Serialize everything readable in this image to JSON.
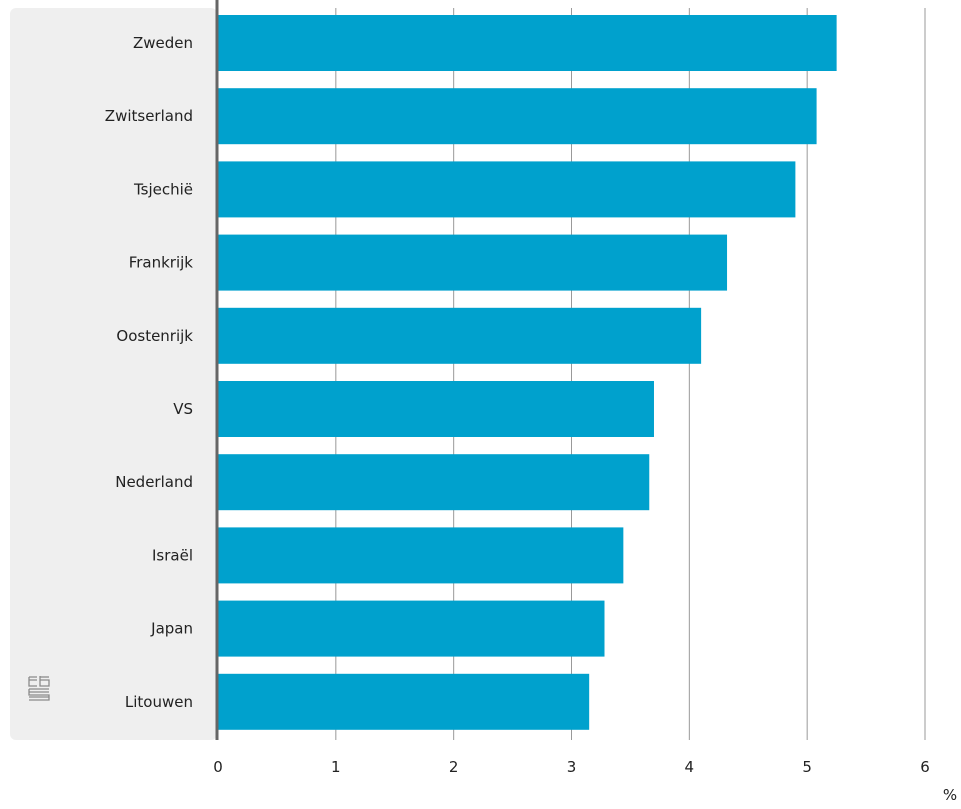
{
  "chart_data": {
    "type": "bar",
    "orientation": "horizontal",
    "categories": [
      "Zweden",
      "Zwitserland",
      "Tsjechië",
      "Frankrijk",
      "Oostenrijk",
      "VS",
      "Nederland",
      "Israël",
      "Japan",
      "Litouwen"
    ],
    "values": [
      5.25,
      5.08,
      4.9,
      4.32,
      4.1,
      3.7,
      3.66,
      3.44,
      3.28,
      3.15
    ],
    "xlim": [
      0,
      6
    ],
    "xticks": [
      "0",
      "1",
      "2",
      "3",
      "4",
      "5",
      "6"
    ],
    "unit": "%",
    "grid": true,
    "bar_color": "#00a1cd",
    "panel_color": "#efefef",
    "axis_color": "#666666",
    "grid_color": "#999999"
  },
  "logo": {
    "icon": "cbs-logo-icon"
  }
}
